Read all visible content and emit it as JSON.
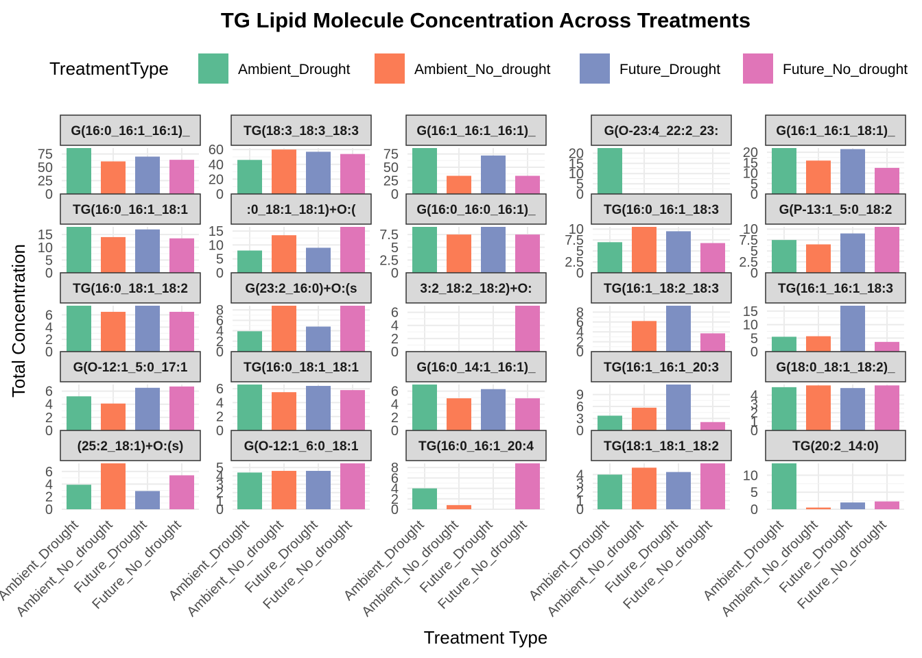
{
  "chart_data": {
    "type": "bar",
    "title": "TG  Lipid Molecule Concentration Across Treatments",
    "xlabel": "Treatment Type",
    "ylabel": "Total Concentration",
    "legend": {
      "title": "TreatmentType",
      "position": "top",
      "entries": [
        "Ambient_Drought",
        "Ambient_No_drought",
        "Future_Drought",
        "Future_No_drought"
      ]
    },
    "colors": {
      "Ambient_Drought": "#5ABA92",
      "Ambient_No_drought": "#FB7C55",
      "Future_Drought": "#7D8FC2",
      "Future_No_drought": "#E075B8"
    },
    "categories": [
      "Ambient_Drought",
      "Ambient_No_drought",
      "Future_Drought",
      "Future_No_drought"
    ],
    "grid": true,
    "facets": [
      {
        "label": "G(16:0_16:1_16:1)_",
        "ylim": [
          0,
          86
        ],
        "yticks": [
          0,
          25,
          50,
          75
        ],
        "values": [
          86,
          61,
          70,
          64
        ]
      },
      {
        "label": "TG(18:3_18:3_18:3",
        "ylim": [
          0,
          62
        ],
        "yticks": [
          0,
          20,
          40,
          60
        ],
        "values": [
          46,
          60,
          57,
          54
        ]
      },
      {
        "label": "G(16:1_16:1_16:1)_",
        "ylim": [
          0,
          86
        ],
        "yticks": [
          0,
          25,
          50,
          75
        ],
        "values": [
          86,
          34,
          72,
          34
        ]
      },
      {
        "label": "G(O-23:4_22:2_23:",
        "ylim": [
          0,
          22.5
        ],
        "yticks": [
          0,
          5,
          10,
          15,
          20
        ],
        "values": [
          22.5,
          0,
          0,
          0
        ]
      },
      {
        "label": "G(16:1_16:1_18:1)_",
        "ylim": [
          0,
          22
        ],
        "yticks": [
          0,
          5,
          10,
          15,
          20
        ],
        "values": [
          22,
          16,
          21.5,
          12.5
        ]
      },
      {
        "label": "TG(16:0_16:1_18:1",
        "ylim": [
          0,
          18
        ],
        "yticks": [
          0,
          5,
          10,
          15
        ],
        "values": [
          18,
          14,
          17,
          13.5
        ]
      },
      {
        "label": ":0_18:1_18:1)+O:(",
        "ylim": [
          0,
          16.5
        ],
        "yticks": [
          0,
          5,
          10,
          15
        ],
        "values": [
          8,
          13.5,
          9,
          16.5
        ]
      },
      {
        "label": "G(16:0_16:0_16:1)_",
        "ylim": [
          0,
          9
        ],
        "yticks": [
          0,
          2.5,
          5,
          7.5
        ],
        "values": [
          9,
          7.5,
          9,
          7.5
        ]
      },
      {
        "label": "TG(16:0_16:1_18:3",
        "ylim": [
          0,
          10.5
        ],
        "yticks": [
          0,
          2.5,
          5,
          7.5,
          10
        ],
        "values": [
          7,
          10.5,
          9.5,
          6.8
        ]
      },
      {
        "label": "G(P-13:1_5:0_18:2",
        "ylim": [
          0,
          10.5
        ],
        "yticks": [
          0,
          2.5,
          5,
          7.5,
          10
        ],
        "values": [
          7.5,
          6.5,
          9,
          10.5
        ]
      },
      {
        "label": "TG(16:0_18:1_18:2",
        "ylim": [
          0,
          7.5
        ],
        "yticks": [
          0,
          2,
          4,
          6
        ],
        "values": [
          7.5,
          6.5,
          7.5,
          6.5
        ]
      },
      {
        "label": "G(23:2_16:0)+O:(s",
        "ylim": [
          0,
          8.8
        ],
        "yticks": [
          0,
          2,
          4,
          6,
          8
        ],
        "values": [
          3.9,
          8.8,
          4.8,
          8.8
        ]
      },
      {
        "label": "3:2_18:2_18:2)+O:",
        "ylim": [
          0,
          7
        ],
        "yticks": [
          0,
          2,
          4,
          6
        ],
        "values": [
          0,
          0,
          0,
          7
        ]
      },
      {
        "label": "TG(16:1_18:2_18:3",
        "ylim": [
          0,
          9.3
        ],
        "yticks": [
          0,
          2,
          4,
          6,
          8
        ],
        "values": [
          0,
          6.2,
          9.3,
          3.7
        ]
      },
      {
        "label": "TG(16:1_16:1_18:3",
        "ylim": [
          0,
          17
        ],
        "yticks": [
          0,
          5,
          10,
          15
        ],
        "values": [
          5.5,
          5.7,
          17,
          3.6
        ]
      },
      {
        "label": "G(O-12:1_5:0_17:1",
        "ylim": [
          0,
          7
        ],
        "yticks": [
          0,
          2,
          4,
          6
        ],
        "values": [
          5.2,
          4.1,
          6.5,
          6.7
        ]
      },
      {
        "label": "TG(16:0_18:1_18:1",
        "ylim": [
          0,
          6.6
        ],
        "yticks": [
          0,
          2,
          4,
          6
        ],
        "values": [
          6.6,
          5.5,
          6.4,
          5.8
        ]
      },
      {
        "label": "G(16:0_14:1_16:1)_",
        "ylim": [
          0,
          7
        ],
        "yticks": [
          0,
          2,
          4,
          6
        ],
        "values": [
          7,
          4.9,
          6.3,
          4.9
        ]
      },
      {
        "label": "TG(16:1_16:1_20:3",
        "ylim": [
          0,
          11.5
        ],
        "yticks": [
          0,
          3,
          6,
          9
        ],
        "values": [
          3.7,
          5.7,
          11.5,
          2.1
        ]
      },
      {
        "label": "G(18:0_18:1_18:2)_",
        "ylim": [
          0,
          5.2
        ],
        "yticks": [
          0,
          1,
          2,
          3,
          4
        ],
        "values": [
          4.9,
          5.1,
          4.8,
          5.1
        ]
      },
      {
        "label": "(25:2_18:1)+O:(s)",
        "ylim": [
          0,
          7.3
        ],
        "yticks": [
          0,
          2,
          4,
          6
        ],
        "values": [
          3.9,
          7.3,
          2.9,
          5.4
        ]
      },
      {
        "label": "G(O-12:1_6:0_18:1",
        "ylim": [
          0,
          5.5
        ],
        "yticks": [
          0,
          1,
          2,
          3,
          4,
          5
        ],
        "values": [
          4.4,
          4.6,
          4.6,
          5.5
        ]
      },
      {
        "label": "TG(16:0_16:1_20:4",
        "ylim": [
          0,
          8.8
        ],
        "yticks": [
          0,
          2,
          4,
          6,
          8
        ],
        "values": [
          4,
          0.8,
          0,
          8.8
        ]
      },
      {
        "label": "TG(18:1_18:1_18:2",
        "ylim": [
          0,
          5.3
        ],
        "yticks": [
          0,
          1,
          2,
          3,
          4
        ],
        "values": [
          4,
          4.8,
          4.3,
          5.3
        ]
      },
      {
        "label": "TG(20:2_14:0)",
        "ylim": [
          0,
          13.5
        ],
        "yticks": [
          0,
          5,
          10
        ],
        "values": [
          13.5,
          0.5,
          2,
          2.3
        ]
      }
    ]
  }
}
